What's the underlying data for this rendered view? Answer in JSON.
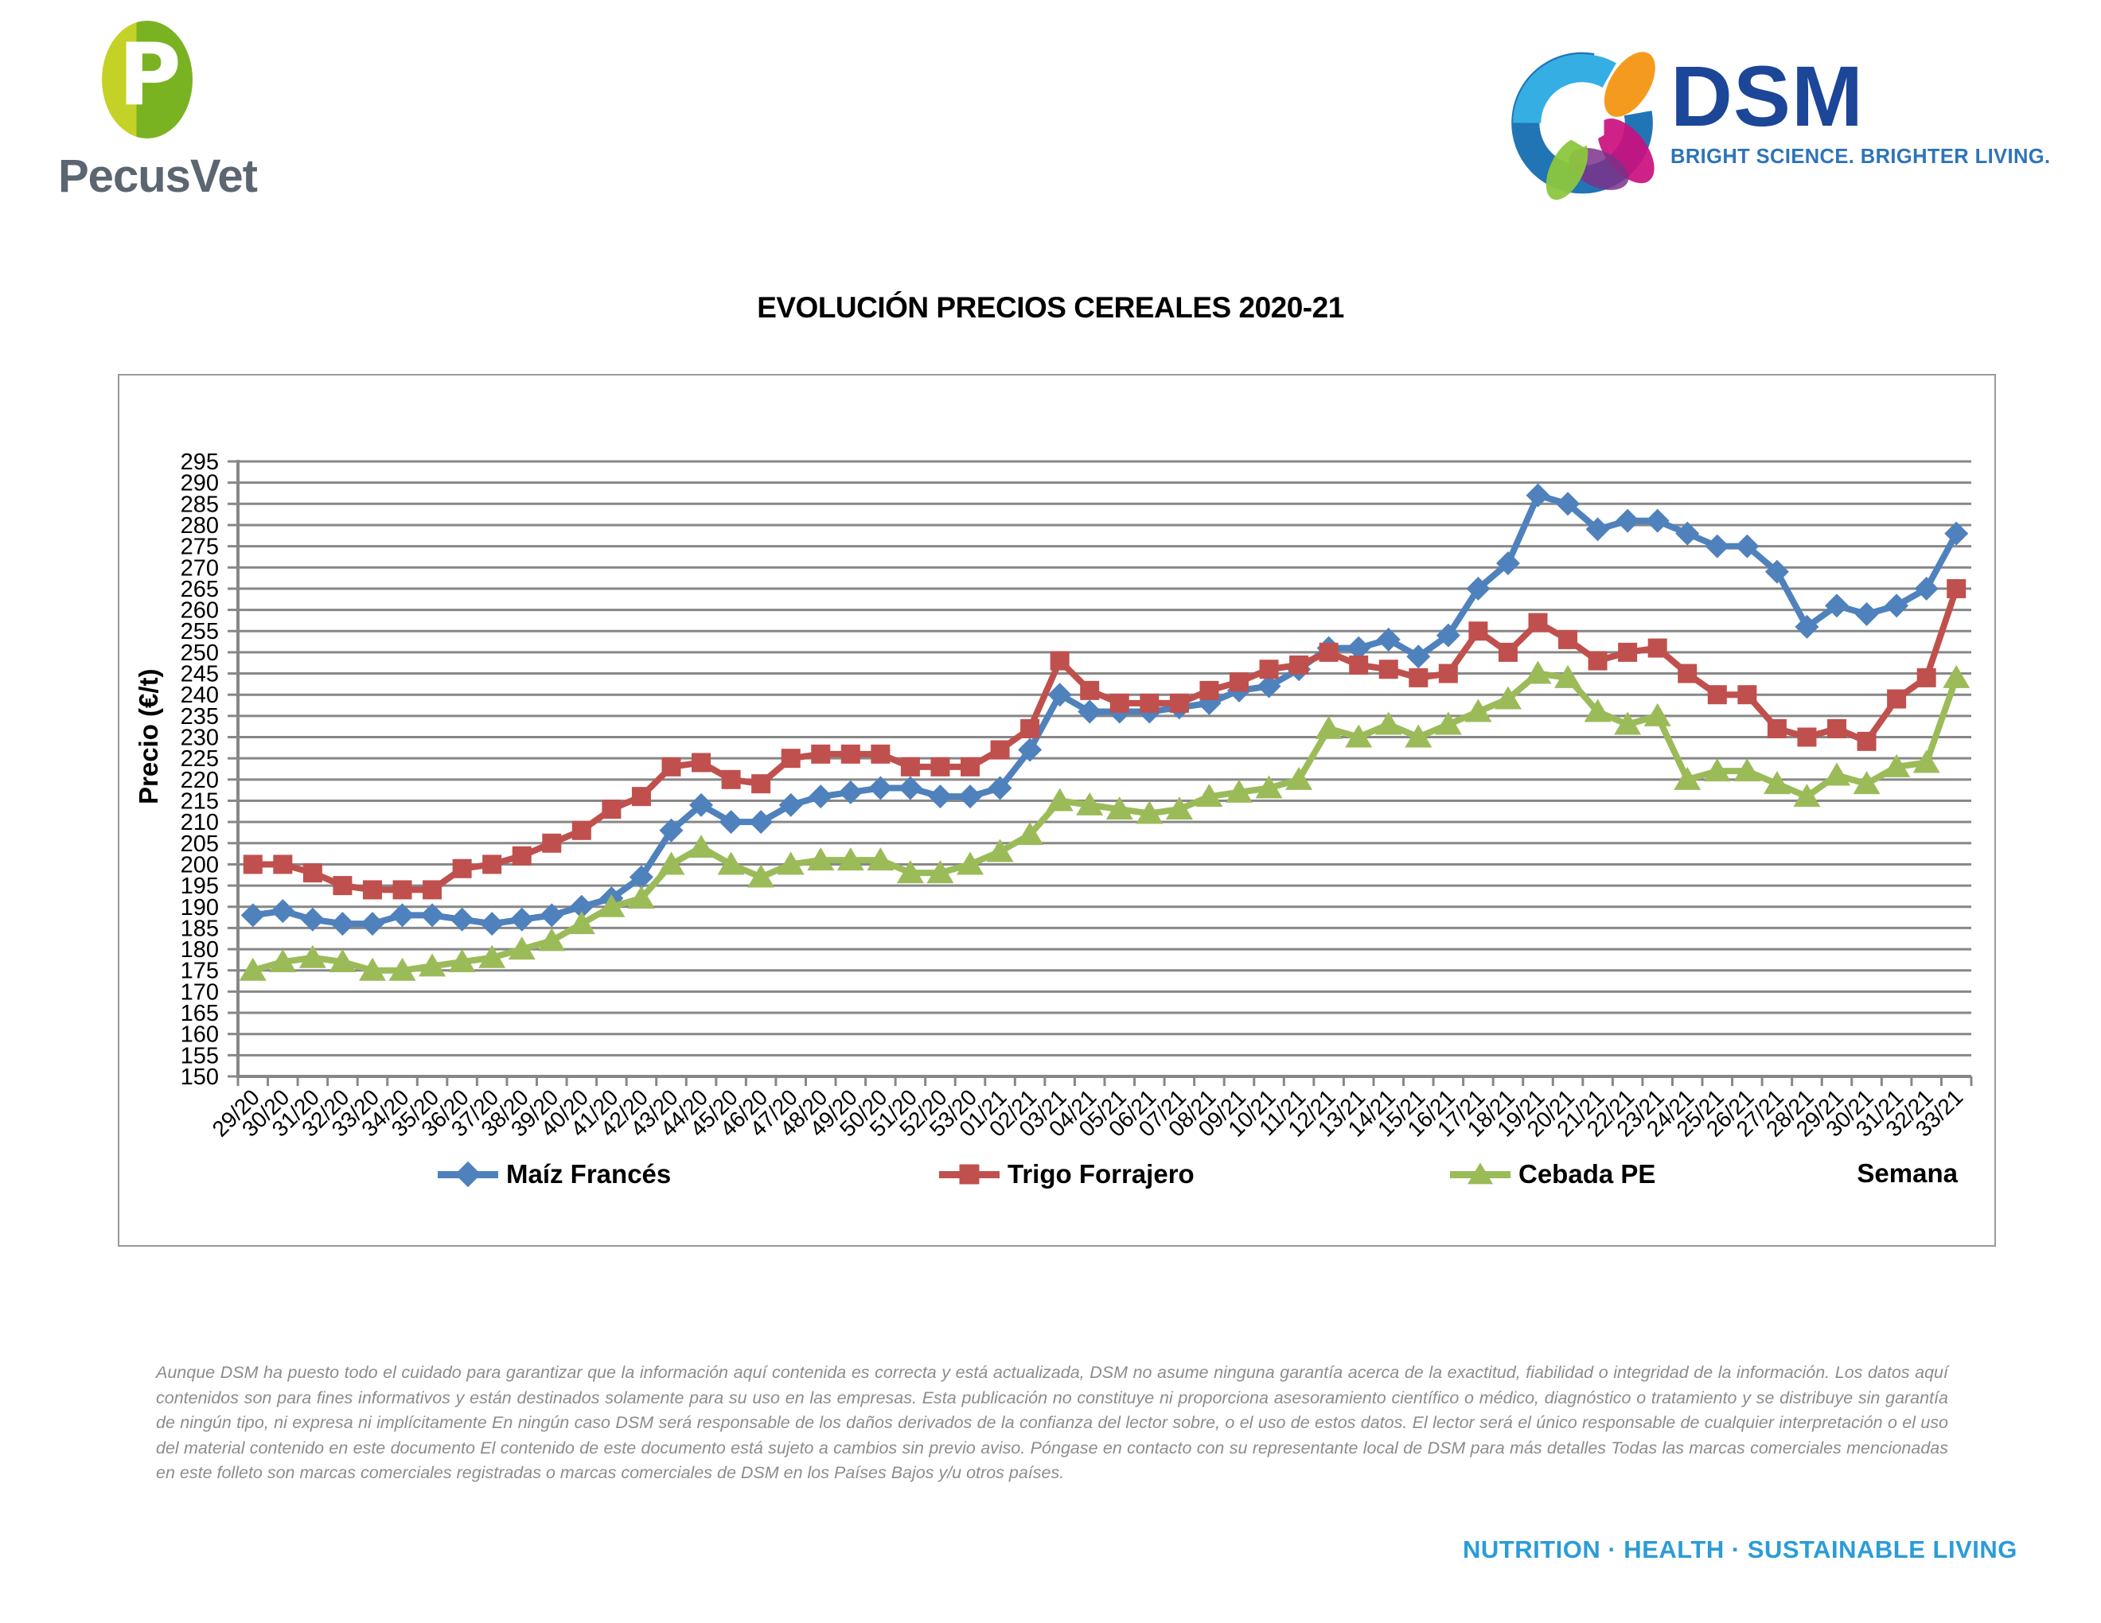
{
  "header": {
    "pecusvet": {
      "brand": "PecusVet",
      "monogram": "P"
    },
    "dsm": {
      "brand": "DSM",
      "tagline": "BRIGHT SCIENCE. BRIGHTER LIVING."
    }
  },
  "title": "EVOLUCIÓN PRECIOS CEREALES 2020-21",
  "chart_data": {
    "type": "line",
    "title": "EVOLUCIÓN PRECIOS CEREALES 2020-21",
    "xlabel": "Semana",
    "ylabel": "Precio (€/t)",
    "ylim": [
      150,
      295
    ],
    "ytick_step": 5,
    "grid": true,
    "legend_position": "bottom",
    "categories": [
      "29/20",
      "30/20",
      "31/20",
      "32/20",
      "33/20",
      "34/20",
      "35/20",
      "36/20",
      "37/20",
      "38/20",
      "39/20",
      "40/20",
      "41/20",
      "42/20",
      "43/20",
      "44/20",
      "45/20",
      "46/20",
      "47/20",
      "48/20",
      "49/20",
      "50/20",
      "51/20",
      "52/20",
      "53/20",
      "01/21",
      "02/21",
      "03/21",
      "04/21",
      "05/21",
      "06/21",
      "07/21",
      "08/21",
      "09/21",
      "10/21",
      "11/21",
      "12/21",
      "13/21",
      "14/21",
      "15/21",
      "16/21",
      "17/21",
      "18/21",
      "19/21",
      "20/21",
      "21/21",
      "22/21",
      "23/21",
      "24/21",
      "25/21",
      "26/21",
      "27/21",
      "28/21",
      "29/21",
      "30/21",
      "31/21",
      "32/21",
      "33/21"
    ],
    "series": [
      {
        "name": "Maíz Francés",
        "color": "#4F81BD",
        "marker": "diamond",
        "values": [
          188,
          189,
          187,
          186,
          186,
          188,
          188,
          187,
          186,
          187,
          188,
          190,
          192,
          197,
          208,
          214,
          210,
          210,
          214,
          216,
          217,
          218,
          218,
          216,
          216,
          218,
          227,
          240,
          236,
          236,
          236,
          237,
          238,
          241,
          242,
          246,
          251,
          251,
          253,
          249,
          254,
          265,
          271,
          287,
          285,
          279,
          281,
          281,
          278,
          275,
          275,
          269,
          256,
          261,
          259,
          261,
          265,
          278
        ]
      },
      {
        "name": "Trigo Forrajero",
        "color": "#C0504D",
        "marker": "square",
        "values": [
          200,
          200,
          198,
          195,
          194,
          194,
          194,
          199,
          200,
          202,
          205,
          208,
          213,
          216,
          223,
          224,
          220,
          219,
          225,
          226,
          226,
          226,
          223,
          223,
          223,
          227,
          232,
          248,
          241,
          238,
          238,
          238,
          241,
          243,
          246,
          247,
          250,
          247,
          246,
          244,
          245,
          255,
          250,
          257,
          253,
          248,
          250,
          251,
          245,
          240,
          240,
          232,
          230,
          232,
          229,
          239,
          244,
          265
        ]
      },
      {
        "name": "Cebada PE",
        "color": "#9BBB59",
        "marker": "triangle",
        "values": [
          175,
          177,
          178,
          177,
          175,
          175,
          176,
          177,
          178,
          180,
          182,
          186,
          190,
          192,
          200,
          204,
          200,
          197,
          200,
          201,
          201,
          201,
          198,
          198,
          200,
          203,
          207,
          215,
          214,
          213,
          212,
          213,
          216,
          217,
          218,
          220,
          232,
          230,
          233,
          230,
          233,
          236,
          239,
          245,
          244,
          236,
          233,
          235,
          220,
          222,
          222,
          219,
          216,
          221,
          219,
          223,
          224,
          244
        ]
      }
    ],
    "axis_color": "#878787"
  },
  "footer": {
    "disclaimer": "Aunque DSM ha puesto todo el cuidado para garantizar que la información aquí contenida es correcta y está actualizada, DSM no asume ninguna garantía acerca de la exactitud, fiabilidad o integridad de la información. Los datos aquí contenidos son para fines informativos y están destinados solamente para su uso en las empresas. Esta publicación no constituye ni proporciona asesoramiento científico o médico, diagnóstico o tratamiento y se distribuye sin garantía de ningún tipo, ni expresa ni implícitamente En ningún caso DSM será responsable de los daños derivados de la confianza del lector sobre, o el uso de estos datos. El lector será el único responsable de cualquier interpretación o el uso del material contenido en este documento El contenido de este documento está sujeto a cambios sin previo aviso. Póngase en contacto con su representante local de DSM para más detalles Todas las marcas comerciales mencionadas en este folleto son marcas comerciales registradas o marcas comerciales de DSM en los Países Bajos y/u otros países.",
    "tagline": "NUTRITION · HEALTH · SUSTAINABLE LIVING"
  }
}
